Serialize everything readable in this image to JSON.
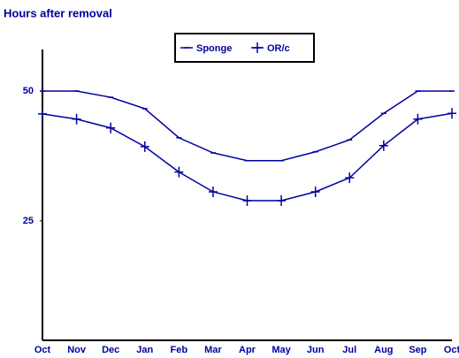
{
  "chart_data": {
    "type": "line",
    "title": "Hours after removal",
    "categories": [
      "Oct",
      "Nov",
      "Dec",
      "Jan",
      "Feb",
      "Mar",
      "Apr",
      "May",
      "Jun",
      "Jul",
      "Aug",
      "Sep",
      "Oct"
    ],
    "series": [
      {
        "name": "Sponge",
        "color": "#0000a0",
        "marker": "tick",
        "values": [
          50,
          50,
          48.8,
          46.6,
          41,
          38.1,
          36.6,
          36.6,
          38.3,
          40.6,
          45.7,
          50,
          50
        ]
      },
      {
        "name": "OR/c",
        "color": "#0000a0",
        "marker": "plus",
        "values": [
          45.6,
          44.6,
          42.9,
          39.3,
          34.4,
          30.6,
          28.9,
          28.9,
          30.6,
          33.3,
          39.5,
          44.6,
          45.7
        ]
      }
    ],
    "ylim": [
      2,
      58
    ],
    "yticks": [
      25,
      50
    ],
    "grid": false
  }
}
